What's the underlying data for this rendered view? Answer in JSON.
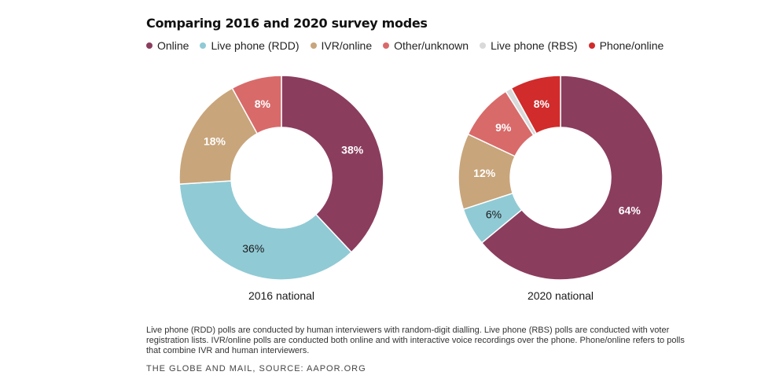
{
  "title": "Comparing 2016 and 2020 survey modes",
  "legend": [
    {
      "label": "Online",
      "color": "#8b3d5e"
    },
    {
      "label": "Live phone (RDD)",
      "color": "#90cad5"
    },
    {
      "label": "IVR/online",
      "color": "#c8a57b"
    },
    {
      "label": "Other/unknown",
      "color": "#d96a6a"
    },
    {
      "label": "Live phone (RBS)",
      "color": "#d9d9d9"
    },
    {
      "label": "Phone/online",
      "color": "#d12b2b"
    }
  ],
  "chart_data": [
    {
      "type": "pie",
      "donut": true,
      "caption": "2016 national",
      "slices": [
        {
          "label": "Online",
          "value": 38,
          "text": "38%"
        },
        {
          "label": "Live phone (RDD)",
          "value": 36,
          "text": "36%"
        },
        {
          "label": "IVR/online",
          "value": 18,
          "text": "18%"
        },
        {
          "label": "Other/unknown",
          "value": 8,
          "text": "8%"
        }
      ]
    },
    {
      "type": "pie",
      "donut": true,
      "caption": "2020 national",
      "slices": [
        {
          "label": "Online",
          "value": 64,
          "text": "64%"
        },
        {
          "label": "Live phone (RDD)",
          "value": 6,
          "text": "6%"
        },
        {
          "label": "IVR/online",
          "value": 12,
          "text": "12%"
        },
        {
          "label": "Other/unknown",
          "value": 9,
          "text": "9%"
        },
        {
          "label": "Live phone (RBS)",
          "value": 1,
          "text": ""
        },
        {
          "label": "Phone/online",
          "value": 8,
          "text": "8%"
        }
      ]
    }
  ],
  "footnote": "Live phone (RDD) polls are conducted by human interviewers with random-digit dialling. Live phone (RBS) polls are conducted with voter registration lists. IVR/online polls are conducted both online and with interactive voice recordings over the phone. Phone/online refers to polls that combine IVR and human interviewers.",
  "source": "THE GLOBE AND MAIL, SOURCE: AAPOR.ORG"
}
